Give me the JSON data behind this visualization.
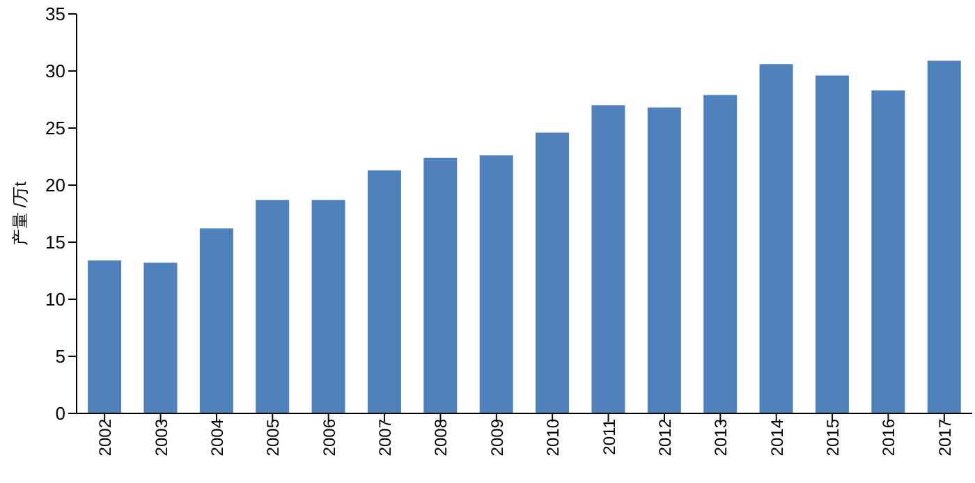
{
  "chart_data": {
    "type": "bar",
    "ylabel": "产量 /万t",
    "categories": [
      "2002",
      "2003",
      "2004",
      "2005",
      "2006",
      "2007",
      "2008",
      "2009",
      "2010",
      "2011",
      "2012",
      "2013",
      "2014",
      "2015",
      "2016",
      "2017"
    ],
    "values": [
      13.4,
      13.2,
      16.2,
      18.7,
      18.7,
      21.3,
      22.4,
      22.6,
      24.6,
      27.0,
      26.8,
      27.9,
      30.6,
      29.6,
      28.3,
      30.9
    ],
    "color": "#4f81bd",
    "ylim": [
      0,
      35
    ],
    "yticks": [
      0,
      5,
      10,
      15,
      20,
      25,
      30,
      35
    ],
    "grid": false,
    "legend": false
  }
}
